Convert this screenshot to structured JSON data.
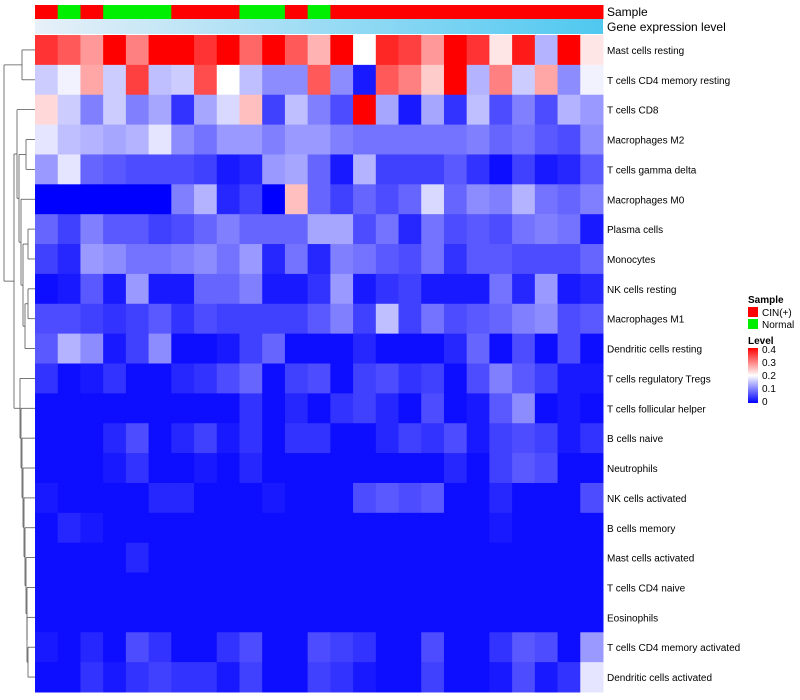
{
  "chart_data": {
    "type": "heatmap",
    "top_annotation_labels": [
      "Sample",
      "Gene expression level"
    ],
    "sample_groups": [
      "CIN(+)",
      "Normal",
      "CIN(+)",
      "Normal",
      "Normal",
      "Normal",
      "CIN(+)",
      "CIN(+)",
      "CIN(+)",
      "Normal",
      "Normal",
      "CIN(+)",
      "Normal",
      "CIN(+)",
      "CIN(+)",
      "CIN(+)",
      "CIN(+)",
      "CIN(+)",
      "CIN(+)",
      "CIN(+)",
      "CIN(+)",
      "CIN(+)",
      "CIN(+)",
      "CIN(+)",
      "CIN(+)"
    ],
    "rows": [
      {
        "label": "Mast cells resting",
        "values": [
          0.36,
          0.33,
          0.28,
          0.4,
          0.3,
          0.4,
          0.4,
          0.36,
          0.4,
          0.32,
          0.4,
          0.33,
          0.26,
          0.4,
          0.2,
          0.37,
          0.35,
          0.28,
          0.4,
          0.36,
          0.22,
          0.38,
          0.14,
          0.4,
          0.22
        ]
      },
      {
        "label": "T cells CD4 memory resting",
        "values": [
          0.16,
          0.19,
          0.27,
          0.16,
          0.35,
          0.15,
          0.16,
          0.34,
          0.2,
          0.15,
          0.11,
          0.11,
          0.33,
          0.11,
          0.02,
          0.33,
          0.3,
          0.24,
          0.4,
          0.14,
          0.3,
          0.16,
          0.27,
          0.11,
          0.19
        ]
      },
      {
        "label": "T cells CD8",
        "values": [
          0.23,
          0.16,
          0.1,
          0.16,
          0.1,
          0.13,
          0.04,
          0.13,
          0.17,
          0.25,
          0.05,
          0.15,
          0.1,
          0.06,
          0.4,
          0.13,
          0.02,
          0.13,
          0.04,
          0.15,
          0.06,
          0.1,
          0.06,
          0.14,
          0.12
        ]
      },
      {
        "label": "Macrophages M2",
        "values": [
          0.18,
          0.15,
          0.14,
          0.13,
          0.14,
          0.18,
          0.11,
          0.09,
          0.12,
          0.12,
          0.1,
          0.12,
          0.12,
          0.1,
          0.09,
          0.09,
          0.09,
          0.09,
          0.09,
          0.1,
          0.08,
          0.09,
          0.07,
          0.06,
          0.11
        ]
      },
      {
        "label": "T cells gamma delta",
        "values": [
          0.12,
          0.18,
          0.08,
          0.07,
          0.06,
          0.06,
          0.06,
          0.05,
          0.02,
          0.03,
          0.12,
          0.13,
          0.08,
          0.02,
          0.14,
          0.05,
          0.05,
          0.05,
          0.07,
          0.04,
          0.01,
          0.05,
          0.02,
          0.03,
          0.07
        ]
      },
      {
        "label": "Macrophages M0",
        "values": [
          0.0,
          0.0,
          0.0,
          0.0,
          0.0,
          0.0,
          0.1,
          0.14,
          0.03,
          0.05,
          0.0,
          0.25,
          0.08,
          0.05,
          0.08,
          0.06,
          0.08,
          0.17,
          0.08,
          0.11,
          0.1,
          0.14,
          0.09,
          0.08,
          0.1
        ]
      },
      {
        "label": "Plasma cells",
        "values": [
          0.08,
          0.05,
          0.1,
          0.07,
          0.07,
          0.05,
          0.06,
          0.08,
          0.1,
          0.08,
          0.08,
          0.08,
          0.13,
          0.13,
          0.06,
          0.09,
          0.03,
          0.09,
          0.06,
          0.07,
          0.06,
          0.09,
          0.1,
          0.09,
          0.02
        ]
      },
      {
        "label": "Monocytes",
        "values": [
          0.05,
          0.03,
          0.12,
          0.11,
          0.09,
          0.09,
          0.1,
          0.11,
          0.09,
          0.12,
          0.03,
          0.09,
          0.03,
          0.1,
          0.09,
          0.07,
          0.06,
          0.09,
          0.04,
          0.07,
          0.07,
          0.06,
          0.06,
          0.06,
          0.08
        ]
      },
      {
        "label": "NK cells resting",
        "values": [
          0.01,
          0.02,
          0.07,
          0.02,
          0.12,
          0.02,
          0.02,
          0.08,
          0.08,
          0.1,
          0.02,
          0.02,
          0.04,
          0.12,
          0.02,
          0.04,
          0.05,
          0.02,
          0.02,
          0.02,
          0.09,
          0.03,
          0.12,
          0.02,
          0.03
        ]
      },
      {
        "label": "Macrophages M1",
        "values": [
          0.06,
          0.06,
          0.05,
          0.04,
          0.05,
          0.07,
          0.04,
          0.06,
          0.05,
          0.05,
          0.05,
          0.05,
          0.07,
          0.1,
          0.05,
          0.15,
          0.05,
          0.09,
          0.06,
          0.07,
          0.08,
          0.1,
          0.11,
          0.06,
          0.07
        ]
      },
      {
        "label": "Dendritic cells resting",
        "values": [
          0.07,
          0.14,
          0.11,
          0.02,
          0.05,
          0.11,
          0.01,
          0.01,
          0.02,
          0.05,
          0.08,
          0.01,
          0.01,
          0.01,
          0.03,
          0.01,
          0.01,
          0.01,
          0.03,
          0.08,
          0.01,
          0.06,
          0.01,
          0.06,
          0.01
        ]
      },
      {
        "label": "T cells regulatory  Tregs",
        "values": [
          0.04,
          0.01,
          0.02,
          0.04,
          0.01,
          0.01,
          0.03,
          0.04,
          0.06,
          0.08,
          0.01,
          0.05,
          0.06,
          0.01,
          0.05,
          0.06,
          0.04,
          0.05,
          0.01,
          0.06,
          0.1,
          0.07,
          0.05,
          0.02,
          0.02
        ]
      },
      {
        "label": "T cells follicular helper",
        "values": [
          0.01,
          0.01,
          0.01,
          0.01,
          0.01,
          0.01,
          0.01,
          0.01,
          0.01,
          0.04,
          0.01,
          0.03,
          0.01,
          0.04,
          0.05,
          0.03,
          0.01,
          0.06,
          0.01,
          0.02,
          0.07,
          0.11,
          0.01,
          0.02,
          0.01
        ]
      },
      {
        "label": "B cells naive",
        "values": [
          0.01,
          0.01,
          0.01,
          0.03,
          0.06,
          0.01,
          0.03,
          0.05,
          0.02,
          0.04,
          0.01,
          0.04,
          0.04,
          0.01,
          0.01,
          0.03,
          0.05,
          0.04,
          0.06,
          0.02,
          0.05,
          0.06,
          0.05,
          0.02,
          0.04
        ]
      },
      {
        "label": "Neutrophils",
        "values": [
          0.01,
          0.01,
          0.01,
          0.02,
          0.04,
          0.01,
          0.01,
          0.02,
          0.01,
          0.03,
          0.01,
          0.01,
          0.01,
          0.01,
          0.01,
          0.01,
          0.01,
          0.01,
          0.03,
          0.01,
          0.05,
          0.07,
          0.06,
          0.01,
          0.01
        ]
      },
      {
        "label": "NK cells activated",
        "values": [
          0.02,
          0.01,
          0.01,
          0.01,
          0.01,
          0.03,
          0.03,
          0.01,
          0.01,
          0.01,
          0.02,
          0.01,
          0.01,
          0.01,
          0.06,
          0.07,
          0.06,
          0.07,
          0.01,
          0.01,
          0.03,
          0.01,
          0.01,
          0.01,
          0.06
        ]
      },
      {
        "label": "B cells memory",
        "values": [
          0.01,
          0.03,
          0.02,
          0.01,
          0.01,
          0.01,
          0.01,
          0.01,
          0.01,
          0.01,
          0.01,
          0.01,
          0.01,
          0.01,
          0.01,
          0.01,
          0.01,
          0.01,
          0.01,
          0.01,
          0.02,
          0.01,
          0.01,
          0.01,
          0.01
        ]
      },
      {
        "label": "Mast cells activated",
        "values": [
          0.01,
          0.01,
          0.01,
          0.01,
          0.03,
          0.01,
          0.01,
          0.01,
          0.01,
          0.01,
          0.01,
          0.01,
          0.01,
          0.01,
          0.01,
          0.01,
          0.01,
          0.01,
          0.01,
          0.01,
          0.01,
          0.01,
          0.01,
          0.01,
          0.01
        ]
      },
      {
        "label": "T cells CD4 naive",
        "values": [
          0.01,
          0.01,
          0.01,
          0.01,
          0.01,
          0.01,
          0.01,
          0.01,
          0.01,
          0.01,
          0.01,
          0.01,
          0.01,
          0.01,
          0.01,
          0.01,
          0.01,
          0.01,
          0.01,
          0.01,
          0.01,
          0.01,
          0.01,
          0.01,
          0.01
        ]
      },
      {
        "label": "Eosinophils",
        "values": [
          0.01,
          0.01,
          0.01,
          0.01,
          0.01,
          0.01,
          0.01,
          0.01,
          0.01,
          0.01,
          0.01,
          0.01,
          0.01,
          0.01,
          0.01,
          0.01,
          0.01,
          0.01,
          0.01,
          0.01,
          0.01,
          0.01,
          0.01,
          0.01,
          0.01
        ]
      },
      {
        "label": "T cells CD4 memory activated",
        "values": [
          0.02,
          0.01,
          0.03,
          0.01,
          0.06,
          0.04,
          0.01,
          0.01,
          0.04,
          0.06,
          0.01,
          0.01,
          0.06,
          0.05,
          0.04,
          0.01,
          0.01,
          0.06,
          0.01,
          0.01,
          0.04,
          0.07,
          0.06,
          0.01,
          0.12
        ]
      },
      {
        "label": "Dendritic cells activated",
        "values": [
          0.01,
          0.01,
          0.04,
          0.02,
          0.04,
          0.05,
          0.04,
          0.04,
          0.02,
          0.05,
          0.01,
          0.01,
          0.05,
          0.04,
          0.02,
          0.01,
          0.01,
          0.05,
          0.01,
          0.01,
          0.02,
          0.06,
          0.02,
          0.04,
          0.18
        ]
      }
    ],
    "scale": {
      "min": 0,
      "max": 0.4,
      "low_color": "#0000FF",
      "mid_color": "#FFFFFF",
      "high_color": "#FF0000"
    },
    "sample_colors": {
      "CIN(+)": "#FF0000",
      "Normal": "#00EE00"
    },
    "gene_level_bar": {
      "from": "#E8F0F8",
      "to": "#4FC8F0"
    },
    "legends": {
      "sample": {
        "title": "Sample",
        "items": [
          "CIN(+)",
          "Normal"
        ]
      },
      "level": {
        "title": "Level",
        "ticks": [
          "0.4",
          "0.3",
          "0.2",
          "0.1",
          "0"
        ]
      }
    }
  }
}
